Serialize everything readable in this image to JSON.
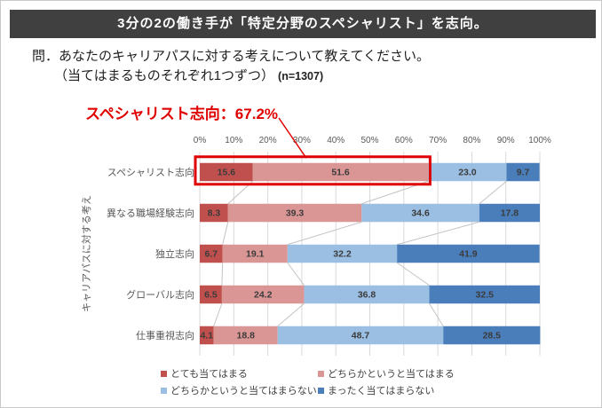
{
  "header": {
    "title": "3分の2の働き手が「特定分野のスペシャリスト」を志向。",
    "bg_color": "#404040"
  },
  "question": {
    "line1": "問．あなたのキャリアパスに対する考えについて教えてください。",
    "line2": "（当てはまるものそれぞれ1つずつ）",
    "sample_size": "(n=1307)"
  },
  "annotation": {
    "text": "スペシャリスト志向：67.2%",
    "color": "#E00000"
  },
  "chart_data": {
    "type": "bar",
    "orientation": "horizontal",
    "stacked": true,
    "grid": true,
    "legend_position": "bottom",
    "ylabel": "キャリアパスに対する考え",
    "xlim": [
      0,
      100
    ],
    "x_ticks": [
      "0%",
      "10%",
      "20%",
      "30%",
      "40%",
      "50%",
      "60%",
      "70%",
      "80%",
      "90%",
      "100%"
    ],
    "categories": [
      "スペシャリスト志向",
      "異なる職場経験志向",
      "独立志向",
      "グローバル志向",
      "仕事重視志向"
    ],
    "series": [
      {
        "name": "とても当てはまる",
        "color": "#C0504D",
        "values": [
          15.6,
          8.3,
          6.7,
          6.5,
          4.1
        ]
      },
      {
        "name": "どちらかというと当てはまる",
        "color": "#DA9694",
        "values": [
          51.6,
          39.3,
          19.1,
          24.2,
          18.8
        ]
      },
      {
        "name": "どちらかというと当てはまらない",
        "color": "#9BBEE3",
        "values": [
          23.0,
          34.6,
          32.2,
          36.8,
          48.7
        ]
      },
      {
        "name": "まったく当てはまらない",
        "color": "#4A7EBB",
        "values": [
          9.7,
          17.8,
          41.9,
          32.5,
          28.5
        ]
      }
    ],
    "highlight": {
      "category": "スペシャリスト志向",
      "span": [
        0,
        67.2
      ],
      "color": "#E00000",
      "label": "67.2%"
    }
  }
}
